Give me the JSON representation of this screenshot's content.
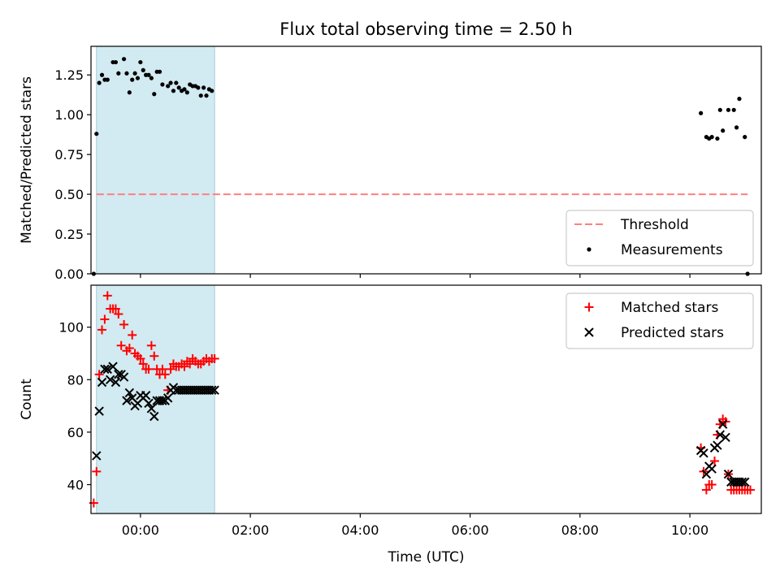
{
  "chart_data": [
    {
      "type": "scatter",
      "title": "Flux total observing time = 2.50 h",
      "xlabel": "",
      "ylabel": "Matched/Predicted stars",
      "ylim": [
        0,
        1.43
      ],
      "yticks": [
        "0.00",
        "0.25",
        "0.50",
        "0.75",
        "1.00",
        "1.25"
      ],
      "xlim": [
        -0.9,
        11.3
      ],
      "legend_position": "lower-right",
      "shaded_span": [
        -0.8,
        1.35
      ],
      "shaded_color": "#add8e6",
      "series": [
        {
          "name": "Threshold",
          "style": "dashed-line",
          "color": "#ff7f7f",
          "x": [
            -0.8,
            11.05
          ],
          "y": [
            0.5,
            0.5
          ]
        },
        {
          "name": "Measurements",
          "style": "dot",
          "color": "#000000",
          "x": [
            -0.85,
            -0.8,
            -0.7,
            -0.6,
            -0.5,
            -0.4,
            -0.3,
            -0.2,
            -0.1,
            0.0,
            0.1,
            0.2,
            0.3,
            0.4,
            0.5,
            0.6,
            0.7,
            0.8,
            0.9,
            1.0,
            1.1,
            1.2,
            1.3,
            -0.75,
            -0.65,
            -0.45,
            -0.25,
            -0.15,
            -0.05,
            0.05,
            0.15,
            0.25,
            0.35,
            0.55,
            0.65,
            0.75,
            0.85,
            0.95,
            1.05,
            1.15,
            1.25,
            10.2,
            10.3,
            10.4,
            10.5,
            10.6,
            10.7,
            10.8,
            10.9,
            11.0,
            10.35,
            10.55,
            10.85,
            11.05
          ],
          "y": [
            0.0,
            0.88,
            1.25,
            1.22,
            1.33,
            1.26,
            1.35,
            1.14,
            1.26,
            1.33,
            1.25,
            1.23,
            1.27,
            1.19,
            1.18,
            1.15,
            1.17,
            1.16,
            1.19,
            1.18,
            1.12,
            1.12,
            1.15,
            1.2,
            1.22,
            1.33,
            1.26,
            1.22,
            1.23,
            1.28,
            1.25,
            1.13,
            1.27,
            1.2,
            1.2,
            1.15,
            1.14,
            1.18,
            1.17,
            1.17,
            1.16,
            1.01,
            0.86,
            0.86,
            0.85,
            0.9,
            1.03,
            1.03,
            1.1,
            0.86,
            0.85,
            1.03,
            0.92,
            0.0
          ]
        }
      ]
    },
    {
      "type": "scatter",
      "title": "",
      "xlabel": "Time (UTC)",
      "ylabel": "Count",
      "ylim": [
        29,
        116
      ],
      "yticks": [
        "40",
        "60",
        "80",
        "100"
      ],
      "xlim": [
        -0.9,
        11.3
      ],
      "xticks": [
        "00:00",
        "02:00",
        "04:00",
        "06:00",
        "08:00",
        "10:00"
      ],
      "legend_position": "upper-right",
      "shaded_span": [
        -0.8,
        1.35
      ],
      "shaded_color": "#add8e6",
      "series": [
        {
          "name": "Matched stars",
          "style": "plus",
          "color": "#ff0000",
          "x": [
            -0.85,
            -0.8,
            -0.75,
            -0.7,
            -0.65,
            -0.6,
            -0.55,
            -0.5,
            -0.45,
            -0.4,
            -0.35,
            -0.3,
            -0.25,
            -0.2,
            -0.15,
            -0.1,
            -0.05,
            0.0,
            0.05,
            0.1,
            0.15,
            0.2,
            0.25,
            0.3,
            0.35,
            0.4,
            0.45,
            0.5,
            0.55,
            0.6,
            0.65,
            0.7,
            0.75,
            0.8,
            0.85,
            0.9,
            0.95,
            1.0,
            1.05,
            1.1,
            1.15,
            1.2,
            1.25,
            1.3,
            1.35,
            10.2,
            10.25,
            10.3,
            10.35,
            10.4,
            10.45,
            10.5,
            10.55,
            10.6,
            10.65,
            10.7,
            10.75,
            10.8,
            10.85,
            10.9,
            10.95,
            11.0,
            11.05,
            11.1
          ],
          "y": [
            33,
            45,
            82,
            99,
            103,
            112,
            107,
            107,
            107,
            105,
            93,
            101,
            91,
            92,
            97,
            90,
            89,
            88,
            86,
            84,
            84,
            93,
            89,
            84,
            82,
            84,
            82,
            76,
            84,
            86,
            85,
            85,
            86,
            85,
            87,
            86,
            88,
            87,
            86,
            86,
            87,
            88,
            87,
            88,
            88,
            54,
            45,
            38,
            40,
            40,
            49,
            59,
            63,
            65,
            64,
            44,
            38,
            38,
            38,
            38,
            38,
            38,
            38,
            38
          ]
        },
        {
          "name": "Predicted stars",
          "style": "x",
          "color": "#000000",
          "x": [
            -0.8,
            -0.75,
            -0.7,
            -0.65,
            -0.6,
            -0.55,
            -0.5,
            -0.45,
            -0.4,
            -0.35,
            -0.3,
            -0.25,
            -0.2,
            -0.15,
            -0.1,
            -0.05,
            0.0,
            0.05,
            0.1,
            0.15,
            0.2,
            0.25,
            0.3,
            0.35,
            0.4,
            0.45,
            0.5,
            0.55,
            0.6,
            0.65,
            0.7,
            0.75,
            0.8,
            0.85,
            0.9,
            0.95,
            1.0,
            1.05,
            1.1,
            1.15,
            1.2,
            1.25,
            1.3,
            1.35,
            10.2,
            10.25,
            10.3,
            10.35,
            10.4,
            10.45,
            10.5,
            10.55,
            10.6,
            10.65,
            10.7,
            10.75,
            10.8,
            10.85,
            10.9,
            10.95,
            11.0
          ],
          "y": [
            51,
            68,
            79,
            84,
            84,
            80,
            85,
            79,
            82,
            82,
            81,
            72,
            75,
            73,
            70,
            71,
            74,
            73,
            74,
            71,
            69,
            66,
            72,
            72,
            72,
            72,
            73,
            76,
            77,
            76,
            76,
            76,
            76,
            76,
            76,
            76,
            76,
            76,
            76,
            76,
            76,
            76,
            76,
            76,
            53,
            52,
            44,
            47,
            46,
            54,
            55,
            59,
            63,
            58,
            44,
            41,
            41,
            41,
            41,
            41,
            41
          ]
        }
      ]
    }
  ]
}
